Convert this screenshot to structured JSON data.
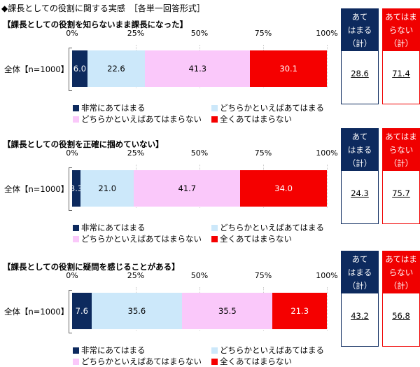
{
  "title": "◆課長としての役割に関する実感　［各単一回答形式］",
  "colors": {
    "very": "#0d2a5e",
    "somewhat": "#cce8fa",
    "somewhat_not": "#fac8fa",
    "not_at_all": "#f50000",
    "navy_box": "#0d2a5e",
    "red_box": "#f00000"
  },
  "chart_data": [
    {
      "type": "bar",
      "orientation": "horizontal-stacked",
      "title": "【課長としての役割を知らないまま課長になった】",
      "categories": [
        "全体【n=1000】"
      ],
      "xlim": [
        0,
        100
      ],
      "x_ticks": [
        "0%",
        "25%",
        "50%",
        "75%",
        "100%"
      ],
      "series": [
        {
          "name": "非常にあてはまる",
          "values": [
            6.0
          ]
        },
        {
          "name": "どちらかといえばあてはまる",
          "values": [
            22.6
          ]
        },
        {
          "name": "どちらかといえばあてはまらない",
          "values": [
            41.3
          ]
        },
        {
          "name": "全くあてはまらない",
          "values": [
            30.1
          ]
        }
      ],
      "summary": [
        {
          "label": "あて はまる （計）",
          "value": "28.6"
        },
        {
          "label": "あてはま らない （計）",
          "value": "71.4"
        }
      ]
    },
    {
      "type": "bar",
      "orientation": "horizontal-stacked",
      "title": "【課長としての役割を正確に掴めていない】",
      "categories": [
        "全体【n=1000】"
      ],
      "xlim": [
        0,
        100
      ],
      "x_ticks": [
        "0%",
        "25%",
        "50%",
        "75%",
        "100%"
      ],
      "series": [
        {
          "name": "非常にあてはまる",
          "values": [
            3.3
          ]
        },
        {
          "name": "どちらかといえばあてはまる",
          "values": [
            21.0
          ]
        },
        {
          "name": "どちらかといえばあてはまらない",
          "values": [
            41.7
          ]
        },
        {
          "name": "全くあてはまらない",
          "values": [
            34.0
          ]
        }
      ],
      "summary": [
        {
          "label": "あて はまる （計）",
          "value": "24.3"
        },
        {
          "label": "あてはま らない （計）",
          "value": "75.7"
        }
      ]
    },
    {
      "type": "bar",
      "orientation": "horizontal-stacked",
      "title": "【課長としての役割に疑問を感じることがある】",
      "categories": [
        "全体【n=1000】"
      ],
      "xlim": [
        0,
        100
      ],
      "x_ticks": [
        "0%",
        "25%",
        "50%",
        "75%",
        "100%"
      ],
      "series": [
        {
          "name": "非常にあてはまる",
          "values": [
            7.6
          ]
        },
        {
          "name": "どちらかといえばあてはまる",
          "values": [
            35.6
          ]
        },
        {
          "name": "どちらかといえばあてはまらない",
          "values": [
            35.5
          ]
        },
        {
          "name": "全くあてはまらない",
          "values": [
            21.3
          ]
        }
      ],
      "summary": [
        {
          "label": "あて はまる （計）",
          "value": "43.2"
        },
        {
          "label": "あてはま らない （計）",
          "value": "56.8"
        }
      ]
    }
  ]
}
